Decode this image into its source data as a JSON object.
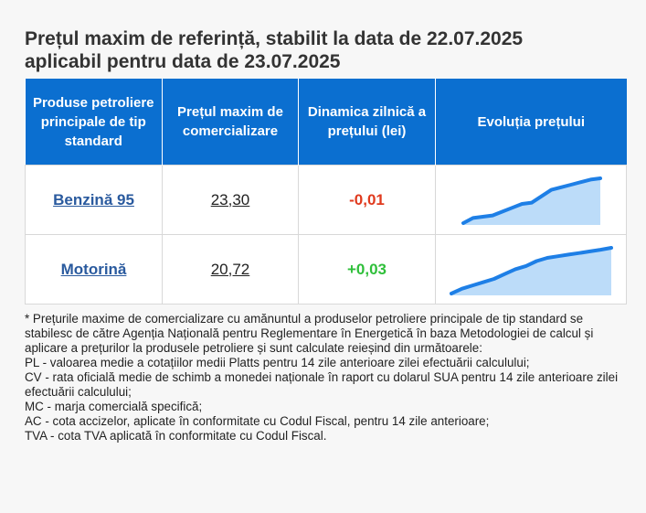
{
  "title_line1": "Prețul maxim de referință, stabilit la data de 22.07.2025",
  "title_line2": "aplicabil pentru data de 23.07.2025",
  "table": {
    "headers": [
      "Produse petroliere principale de tip standard",
      "Prețul maxim de comercializare",
      "Dinamica zilnică a prețului (lei)",
      "Evoluția prețului"
    ],
    "rows": [
      {
        "product": "Benzină 95",
        "price": "23,30",
        "dynamic": "-0,01",
        "dynamic_color": "#e03a1e",
        "spark": [
          19.8,
          20.2,
          20.3,
          20.4,
          20.7,
          21.0,
          21.3,
          21.4,
          21.9,
          22.4,
          22.6,
          22.8,
          23.0,
          23.2,
          23.3
        ]
      },
      {
        "product": "Motorină",
        "price": "20,72",
        "dynamic": "+0,03",
        "dynamic_color": "#2fbf3a",
        "spark": [
          17.9,
          18.2,
          18.4,
          18.6,
          18.8,
          19.1,
          19.4,
          19.6,
          19.9,
          20.1,
          20.2,
          20.3,
          20.4,
          20.5,
          20.6,
          20.72
        ]
      }
    ]
  },
  "spark_color": "#1e7fe6",
  "spark_fill": "#bcdcf9",
  "notes": [
    "* Prețurile maxime de comercializare cu amănuntul a produselor petroliere principale de tip standard se stabilesc de către Agenția Națională pentru Reglementare în Energetică în baza Metodologiei de calcul și aplicare a prețurilor la produsele petroliere și sunt calculate reieșind din următoarele:",
    "PL - valoarea medie a cotațiilor medii Platts pentru 14 zile anterioare zilei efectuării calculului;",
    "CV - rata oficială medie de schimb a monedei naționale în raport cu dolarul SUA pentru 14 zile anterioare zilei efectuării calculului;",
    "MC - marja comercială specifică;",
    "AC - cota accizelor, aplicate în conformitate cu Codul Fiscal, pentru 14 zile anterioare;",
    "TVA - cota TVA aplicată în conformitate cu Codul Fiscal."
  ]
}
